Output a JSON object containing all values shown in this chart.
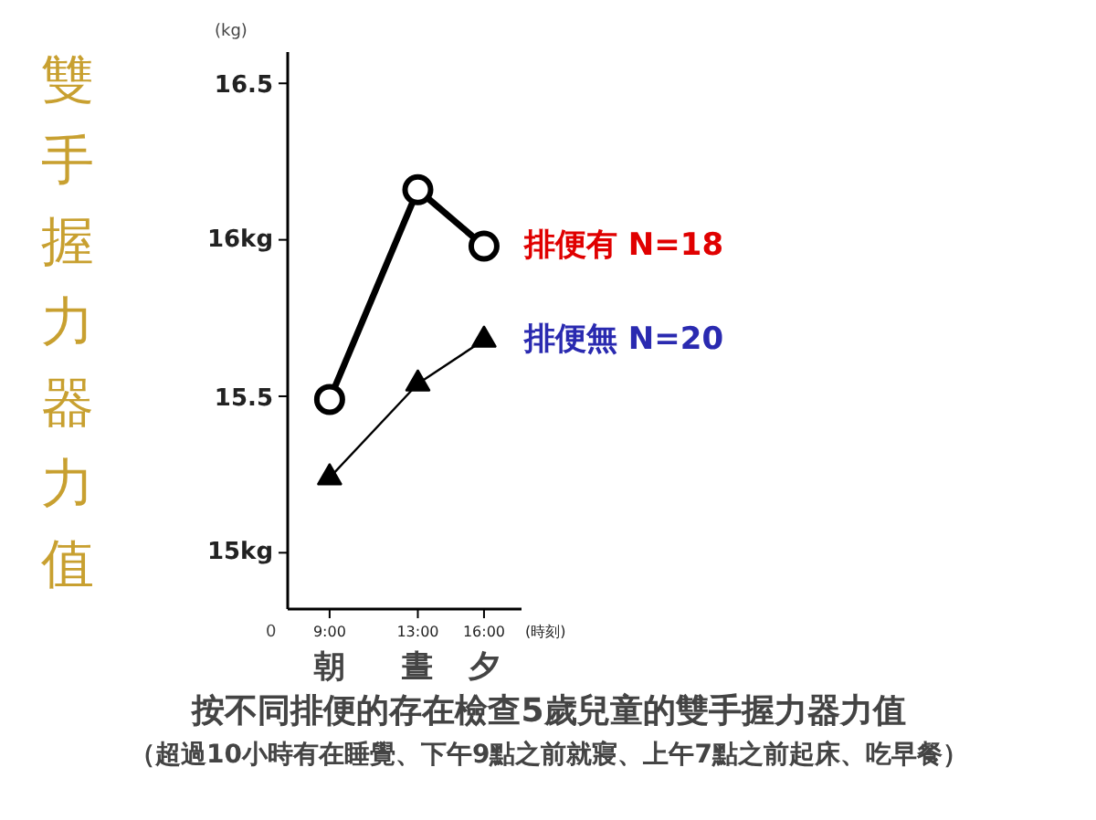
{
  "chart_data": {
    "type": "line",
    "title": "按不同排便的存在檢查5歲兒童的雙手握力器力值",
    "subtitle": "（超過10小時有在睡覺、下午9點之前就寢、上午7點之前起床、吃早餐）",
    "ylabel": "雙手握力器力值",
    "xlabel": "(時刻)",
    "x": [
      9,
      13,
      16
    ],
    "series": [
      {
        "name": "排便有 N=18",
        "color": "#000000",
        "marker": "circle",
        "values": [
          15.49,
          16.16,
          15.98
        ]
      },
      {
        "name": "排便無 N=20",
        "color": "#000000",
        "marker": "triangle",
        "values": [
          15.24,
          15.54,
          15.68
        ]
      }
    ],
    "xlim": [
      7.1,
      17.7
    ],
    "xticks": [
      {
        "value": 9,
        "label": "9:00"
      },
      {
        "value": 13,
        "label": "13:00"
      },
      {
        "value": 16,
        "label": "16:00"
      }
    ],
    "ylim": [
      14.82,
      16.6
    ],
    "yticks": [
      {
        "value": 15,
        "label": "15kg"
      },
      {
        "value": 15.5,
        "label": "15.5"
      },
      {
        "value": 16,
        "label": "16kg"
      },
      {
        "value": 16.5,
        "label": "16.5"
      }
    ],
    "annotations": [
      "(kg)",
      "0",
      "朝",
      "晝",
      "夕"
    ],
    "grid": false
  }
}
